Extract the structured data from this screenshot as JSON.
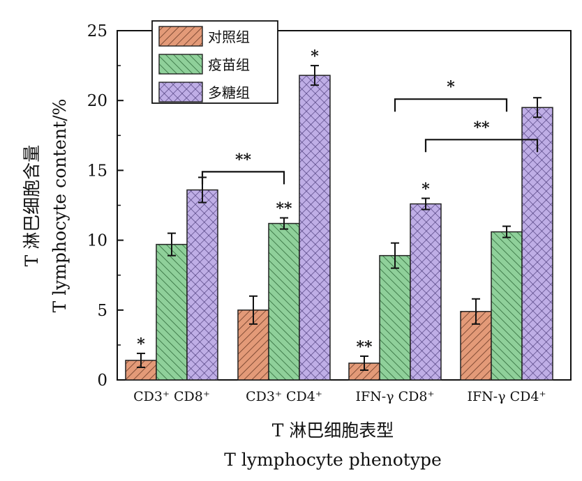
{
  "chart_data": {
    "type": "bar",
    "categories": [
      "CD3⁺ CD8⁺",
      "CD3⁺ CD4⁺",
      "IFN-γ CD8⁺",
      "IFN-γ CD4⁺"
    ],
    "series": [
      {
        "name": "对照组",
        "values": [
          1.4,
          5.0,
          1.2,
          4.9
        ],
        "errors": [
          0.5,
          1.0,
          0.5,
          0.9
        ],
        "color": "#e39a78",
        "pattern": "diagonal-left"
      },
      {
        "name": "疫苗组",
        "values": [
          9.7,
          11.2,
          8.9,
          10.6
        ],
        "errors": [
          0.8,
          0.4,
          0.9,
          0.4
        ],
        "color": "#8fd09a",
        "pattern": "diagonal-right"
      },
      {
        "name": "多糖组",
        "values": [
          13.6,
          21.8,
          12.6,
          19.5
        ],
        "errors": [
          0.9,
          0.7,
          0.4,
          0.7
        ],
        "color": "#bfaee6",
        "pattern": "crosshatch"
      }
    ],
    "ylim": [
      0,
      25
    ],
    "yticks": [
      "0",
      "5",
      "10",
      "15",
      "20",
      "25"
    ],
    "ylabel_cn": "T 淋巴细胞含量",
    "ylabel_en": "T lymphocyte content/%",
    "xlabel_cn": "T 淋巴细胞表型",
    "xlabel_en": "T lymphocyte phenotype",
    "legend_position": "top-left",
    "bar_annotations": [
      {
        "category": 0,
        "series": 0,
        "text": "*"
      },
      {
        "category": 1,
        "series": 1,
        "text": "**"
      },
      {
        "category": 1,
        "series": 2,
        "text": "*"
      },
      {
        "category": 2,
        "series": 0,
        "text": "**"
      },
      {
        "category": 2,
        "series": 2,
        "text": "*"
      }
    ],
    "brackets": [
      {
        "from": {
          "category": 0,
          "series": 2
        },
        "to": {
          "category": 1,
          "series": 1
        },
        "level": 14.9,
        "text": "**"
      },
      {
        "from": {
          "category": 2,
          "series": 1
        },
        "to": {
          "category": 3,
          "series": 1
        },
        "level": 20.1,
        "text": "*"
      },
      {
        "from": {
          "category": 2,
          "series": 2
        },
        "to": {
          "category": 3,
          "series": 2
        },
        "level": 17.2,
        "text": "**"
      }
    ]
  }
}
